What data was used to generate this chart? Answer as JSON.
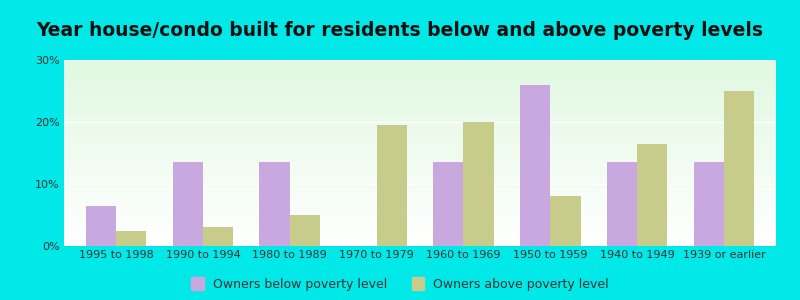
{
  "title": "Year house/condo built for residents below and above poverty levels",
  "categories": [
    "1995 to 1998",
    "1990 to 1994",
    "1980 to 1989",
    "1970 to 1979",
    "1960 to 1969",
    "1950 to 1959",
    "1940 to 1949",
    "1939 or earlier"
  ],
  "below_poverty": [
    6.5,
    13.5,
    13.5,
    0,
    13.5,
    26.0,
    13.5,
    13.5
  ],
  "above_poverty": [
    2.5,
    3.0,
    5.0,
    19.5,
    20.0,
    8.0,
    16.5,
    25.0
  ],
  "below_color": "#c9a8e0",
  "above_color": "#c8cc8a",
  "background_outer": "#00e8e8",
  "ylim": [
    0,
    30
  ],
  "yticks": [
    0,
    10,
    20,
    30
  ],
  "ytick_labels": [
    "0%",
    "10%",
    "20%",
    "30%"
  ],
  "legend_below": "Owners below poverty level",
  "legend_above": "Owners above poverty level",
  "title_fontsize": 13.5,
  "tick_fontsize": 8,
  "legend_fontsize": 9,
  "bar_width": 0.35
}
